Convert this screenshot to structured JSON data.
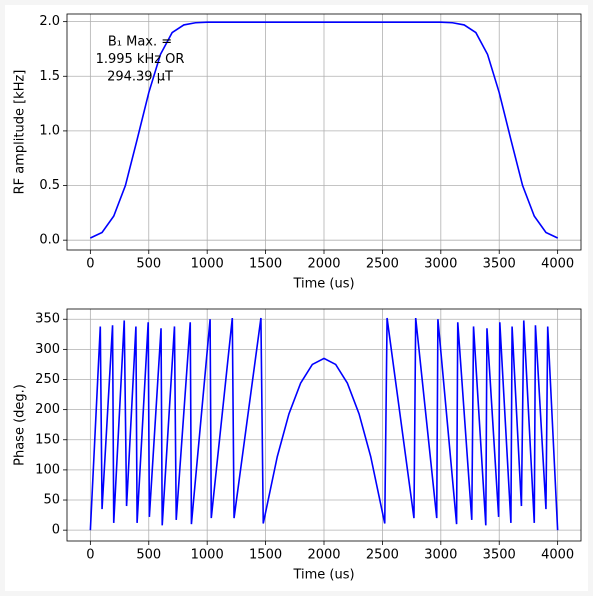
{
  "chart_data": [
    {
      "type": "line",
      "xlabel": "Time (us)",
      "ylabel": "RF amplitude [kHz]",
      "annotation": [
        "B₁ Max. =",
        "1.995 kHz OR",
        "294.39 μT"
      ],
      "xlim": [
        -200,
        4200
      ],
      "ylim": [
        -0.09,
        2.07
      ],
      "xticks": [
        0,
        500,
        1000,
        1500,
        2000,
        2500,
        3000,
        3500,
        4000
      ],
      "yticks": [
        {
          "value": 0,
          "label": "0.0"
        },
        0.5,
        {
          "value": 1,
          "label": "1.0"
        },
        1.5,
        {
          "value": 2,
          "label": "2.0"
        }
      ],
      "grid": true,
      "series": [
        {
          "color": "#0000ff",
          "x": [
            0,
            100,
            200,
            300,
            400,
            500,
            600,
            700,
            800,
            900,
            1000,
            1100,
            1200,
            1300,
            1400,
            1500,
            1600,
            1700,
            1800,
            1900,
            2000,
            2100,
            2200,
            2300,
            2400,
            2500,
            2600,
            2700,
            2800,
            2900,
            3000,
            3100,
            3200,
            3300,
            3400,
            3500,
            3600,
            3700,
            3800,
            3900,
            4000
          ],
          "values": [
            0.02,
            0.07,
            0.22,
            0.5,
            0.92,
            1.35,
            1.7,
            1.9,
            1.97,
            1.99,
            1.995,
            1.995,
            1.995,
            1.995,
            1.995,
            1.995,
            1.995,
            1.995,
            1.995,
            1.995,
            1.995,
            1.995,
            1.995,
            1.995,
            1.995,
            1.995,
            1.995,
            1.995,
            1.995,
            1.995,
            1.995,
            1.99,
            1.97,
            1.9,
            1.7,
            1.35,
            0.92,
            0.5,
            0.22,
            0.07,
            0.02
          ]
        }
      ]
    },
    {
      "type": "line",
      "xlabel": "Time (us)",
      "ylabel": "Phase (deg.)",
      "xlim": [
        -200,
        4200
      ],
      "ylim": [
        -18,
        367
      ],
      "xticks": [
        0,
        500,
        1000,
        1500,
        2000,
        2500,
        3000,
        3500,
        4000
      ],
      "yticks": [
        0,
        50,
        100,
        150,
        200,
        250,
        300,
        350
      ],
      "grid": true,
      "series": [
        {
          "color": "#0000ff",
          "x": [
            0,
            85,
            100,
            190,
            200,
            290,
            310,
            390,
            400,
            495,
            505,
            605,
            615,
            720,
            735,
            855,
            865,
            1025,
            1035,
            1215,
            1230,
            1460,
            1480,
            1600,
            1700,
            1800,
            1900,
            2000,
            2100,
            2200,
            2300,
            2400,
            2520,
            2540,
            2770,
            2785,
            2965,
            2975,
            3135,
            3145,
            3265,
            3280,
            3385,
            3395,
            3495,
            3505,
            3600,
            3610,
            3690,
            3710,
            3800,
            3810,
            3900,
            3915,
            4000
          ],
          "values": [
            0,
            338,
            35,
            340,
            12,
            348,
            40,
            338,
            12,
            345,
            22,
            335,
            8,
            338,
            17,
            345,
            10,
            350,
            20,
            352,
            20,
            352,
            11,
            122,
            193,
            244,
            275,
            285,
            275,
            244,
            193,
            122,
            11,
            352,
            20,
            352,
            20,
            350,
            10,
            345,
            17,
            338,
            8,
            335,
            22,
            345,
            12,
            338,
            40,
            348,
            12,
            340,
            35,
            338,
            0
          ]
        }
      ]
    }
  ]
}
